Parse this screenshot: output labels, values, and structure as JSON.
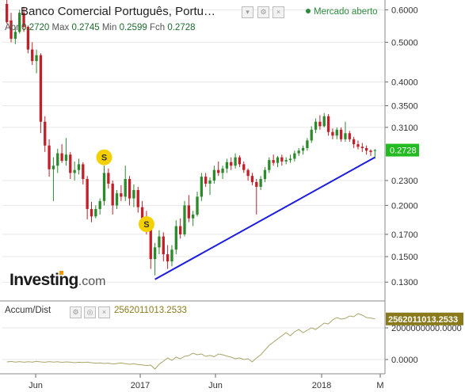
{
  "header": {
    "title": "Banco Comercial Português, Portu…",
    "ohlc": [
      {
        "label": "Abr",
        "value": "0.2720"
      },
      {
        "label": "Max",
        "value": "0.2745"
      },
      {
        "label": "Min",
        "value": "0.2599"
      },
      {
        "label": "Fch",
        "value": "0.2728"
      }
    ],
    "market_status": "Mercado aberto"
  },
  "indicator": {
    "name": "Accum/Dist",
    "value": "2562011013.2533"
  },
  "logo": {
    "main": "Investing",
    "suffix": ".com"
  },
  "colors": {
    "up": "#2c8a2c",
    "down": "#c0202a",
    "trend": "#1d1de0",
    "price_tag": "#22bb22",
    "ad_line": "#a8a46a",
    "ad_tag": "#8a7a1c",
    "split_marker": "#f5d000"
  },
  "chart_data": [
    {
      "type": "candlestick",
      "y_scale": "log",
      "ylim": [
        0.118,
        0.62
      ],
      "yticks": [
        "0.6000",
        "0.5000",
        "0.4000",
        "0.3500",
        "0.3100",
        "0.2728",
        "0.2300",
        "0.2000",
        "0.1700",
        "0.1500",
        "0.1300"
      ],
      "x_tick_labels": [
        "Jun",
        "2017",
        "Jun",
        "2018",
        "M"
      ],
      "last_price": "0.2728",
      "markers": [
        {
          "label": "S",
          "index": 23,
          "price": 0.262
        },
        {
          "label": "S",
          "index": 33,
          "price": 0.18
        }
      ],
      "trendline": {
        "from": {
          "index": 35,
          "price": 0.132
        },
        "to": {
          "index": 87,
          "price": 0.262
        }
      },
      "ohlc": [
        [
          0.62,
          0.64,
          0.555,
          0.56
        ],
        [
          0.565,
          0.59,
          0.5,
          0.51
        ],
        [
          0.51,
          0.545,
          0.495,
          0.53
        ],
        [
          0.53,
          0.6,
          0.525,
          0.59
        ],
        [
          0.59,
          0.61,
          0.53,
          0.545
        ],
        [
          0.545,
          0.55,
          0.47,
          0.48
        ],
        [
          0.48,
          0.5,
          0.44,
          0.45
        ],
        [
          0.45,
          0.48,
          0.42,
          0.465
        ],
        [
          0.465,
          0.47,
          0.3,
          0.32
        ],
        [
          0.32,
          0.33,
          0.27,
          0.28
        ],
        [
          0.28,
          0.29,
          0.235,
          0.245
        ],
        [
          0.245,
          0.262,
          0.205,
          0.25
        ],
        [
          0.25,
          0.275,
          0.24,
          0.268
        ],
        [
          0.268,
          0.282,
          0.254,
          0.257
        ],
        [
          0.257,
          0.292,
          0.25,
          0.266
        ],
        [
          0.266,
          0.27,
          0.232,
          0.24
        ],
        [
          0.24,
          0.256,
          0.23,
          0.244
        ],
        [
          0.244,
          0.26,
          0.238,
          0.252
        ],
        [
          0.252,
          0.255,
          0.225,
          0.232
        ],
        [
          0.232,
          0.236,
          0.185,
          0.196
        ],
        [
          0.196,
          0.204,
          0.182,
          0.188
        ],
        [
          0.188,
          0.2,
          0.186,
          0.196
        ],
        [
          0.196,
          0.208,
          0.19,
          0.205
        ],
        [
          0.205,
          0.25,
          0.2,
          0.24
        ],
        [
          0.24,
          0.246,
          0.22,
          0.226
        ],
        [
          0.226,
          0.23,
          0.19,
          0.2
        ],
        [
          0.2,
          0.218,
          0.196,
          0.214
        ],
        [
          0.214,
          0.224,
          0.205,
          0.21
        ],
        [
          0.21,
          0.25,
          0.205,
          0.232
        ],
        [
          0.232,
          0.236,
          0.2,
          0.208
        ],
        [
          0.208,
          0.225,
          0.198,
          0.218
        ],
        [
          0.218,
          0.222,
          0.192,
          0.198
        ],
        [
          0.198,
          0.205,
          0.18,
          0.186
        ],
        [
          0.186,
          0.194,
          0.17,
          0.176
        ],
        [
          0.176,
          0.18,
          0.14,
          0.148
        ],
        [
          0.148,
          0.162,
          0.135,
          0.158
        ],
        [
          0.158,
          0.174,
          0.152,
          0.168
        ],
        [
          0.168,
          0.172,
          0.146,
          0.152
        ],
        [
          0.152,
          0.16,
          0.14,
          0.146
        ],
        [
          0.146,
          0.16,
          0.142,
          0.156
        ],
        [
          0.156,
          0.184,
          0.152,
          0.178
        ],
        [
          0.178,
          0.186,
          0.166,
          0.17
        ],
        [
          0.17,
          0.205,
          0.168,
          0.2
        ],
        [
          0.2,
          0.212,
          0.182,
          0.186
        ],
        [
          0.186,
          0.194,
          0.178,
          0.19
        ],
        [
          0.19,
          0.216,
          0.188,
          0.21
        ],
        [
          0.21,
          0.24,
          0.205,
          0.235
        ],
        [
          0.235,
          0.24,
          0.222,
          0.226
        ],
        [
          0.226,
          0.234,
          0.212,
          0.23
        ],
        [
          0.23,
          0.25,
          0.226,
          0.244
        ],
        [
          0.244,
          0.256,
          0.236,
          0.24
        ],
        [
          0.24,
          0.25,
          0.232,
          0.246
        ],
        [
          0.246,
          0.26,
          0.24,
          0.255
        ],
        [
          0.255,
          0.262,
          0.244,
          0.25
        ],
        [
          0.25,
          0.268,
          0.246,
          0.262
        ],
        [
          0.262,
          0.265,
          0.248,
          0.252
        ],
        [
          0.252,
          0.256,
          0.24,
          0.244
        ],
        [
          0.244,
          0.246,
          0.23,
          0.236
        ],
        [
          0.236,
          0.24,
          0.224,
          0.228
        ],
        [
          0.228,
          0.232,
          0.19,
          0.222
        ],
        [
          0.222,
          0.236,
          0.218,
          0.232
        ],
        [
          0.232,
          0.248,
          0.228,
          0.244
        ],
        [
          0.244,
          0.262,
          0.24,
          0.258
        ],
        [
          0.258,
          0.266,
          0.25,
          0.254
        ],
        [
          0.254,
          0.264,
          0.248,
          0.262
        ],
        [
          0.262,
          0.266,
          0.25,
          0.256
        ],
        [
          0.256,
          0.262,
          0.252,
          0.258
        ],
        [
          0.258,
          0.266,
          0.254,
          0.26
        ],
        [
          0.26,
          0.272,
          0.256,
          0.268
        ],
        [
          0.268,
          0.276,
          0.264,
          0.272
        ],
        [
          0.272,
          0.28,
          0.266,
          0.276
        ],
        [
          0.276,
          0.292,
          0.272,
          0.288
        ],
        [
          0.288,
          0.312,
          0.284,
          0.306
        ],
        [
          0.306,
          0.326,
          0.3,
          0.32
        ],
        [
          0.32,
          0.332,
          0.306,
          0.312
        ],
        [
          0.312,
          0.336,
          0.31,
          0.33
        ],
        [
          0.33,
          0.334,
          0.296,
          0.302
        ],
        [
          0.302,
          0.308,
          0.29,
          0.296
        ],
        [
          0.296,
          0.31,
          0.29,
          0.306
        ],
        [
          0.306,
          0.31,
          0.286,
          0.29
        ],
        [
          0.29,
          0.32,
          0.286,
          0.3
        ],
        [
          0.3,
          0.304,
          0.286,
          0.29
        ],
        [
          0.29,
          0.294,
          0.276,
          0.282
        ],
        [
          0.282,
          0.288,
          0.274,
          0.278
        ],
        [
          0.278,
          0.284,
          0.27,
          0.276
        ],
        [
          0.276,
          0.28,
          0.266,
          0.272
        ],
        [
          0.272,
          0.274,
          0.264,
          0.27
        ],
        [
          0.272,
          0.2745,
          0.2599,
          0.2728
        ]
      ]
    },
    {
      "type": "line",
      "name": "Accum/Dist",
      "yticks": [
        "2000000000.0000",
        "0.0000"
      ],
      "ylim": [
        -800000000,
        3600000000
      ],
      "last_value": "2562011013.2533",
      "values": [
        -150000000,
        -120000000,
        -160000000,
        -130000000,
        -170000000,
        -140000000,
        -160000000,
        -110000000,
        -150000000,
        -170000000,
        -130000000,
        -160000000,
        -140000000,
        -180000000,
        -150000000,
        -160000000,
        -200000000,
        -170000000,
        -190000000,
        -160000000,
        -200000000,
        -240000000,
        -210000000,
        -250000000,
        -230000000,
        -280000000,
        -250000000,
        -220000000,
        -260000000,
        -300000000,
        -260000000,
        -320000000,
        -340000000,
        -380000000,
        -350000000,
        -600000000,
        -300000000,
        -100000000,
        100000000,
        -50000000,
        150000000,
        50000000,
        200000000,
        250000000,
        400000000,
        300000000,
        350000000,
        200000000,
        260000000,
        180000000,
        350000000,
        300000000,
        220000000,
        150000000,
        50000000,
        100000000,
        0,
        50000000,
        -150000000,
        100000000,
        300000000,
        600000000,
        900000000,
        1100000000,
        1300000000,
        1500000000,
        1700000000,
        1500000000,
        1750000000,
        1900000000,
        1700000000,
        1850000000,
        2000000000,
        1900000000,
        2100000000,
        2300000000,
        2250000000,
        2500000000,
        2650000000,
        2550000000,
        2600000000,
        2750000000,
        2700000000,
        2900000000,
        2800000000,
        2650000000,
        2620000000,
        2562011013
      ]
    }
  ]
}
